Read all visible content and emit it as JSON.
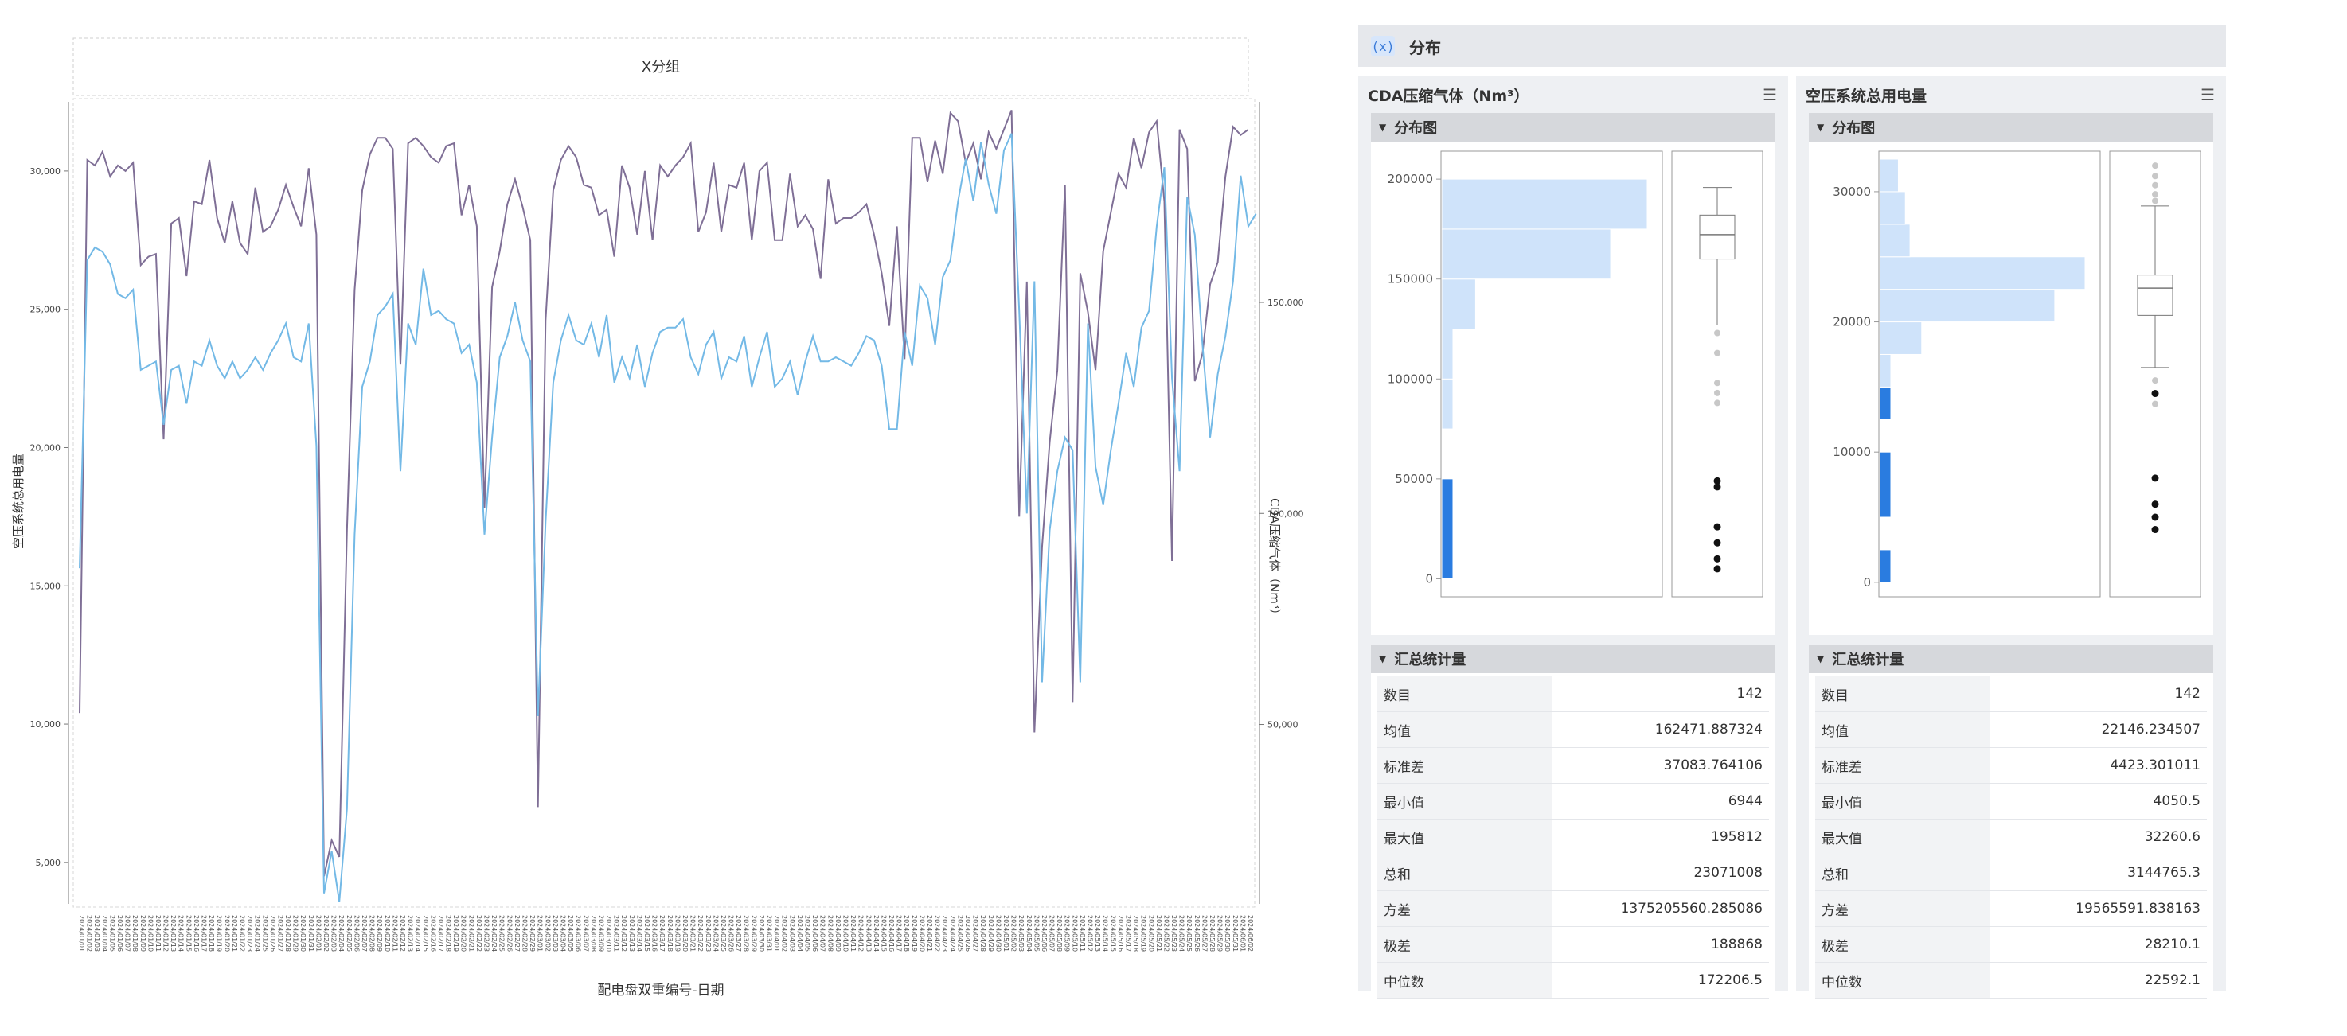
{
  "chart_data": [
    {
      "type": "line",
      "title": "X分组",
      "xlabel": "配电盘双重编号-日期",
      "ylabel": "空压系统总用电量",
      "y2label": "CDA压缩气体（Nm³）",
      "ylim": [
        3500,
        32500
      ],
      "y2lim": [
        7500,
        197500
      ],
      "yticks": [
        "5,000",
        "10,000",
        "15,000",
        "20,000",
        "25,000",
        "30,000"
      ],
      "y2ticks": [
        "50,000",
        "100,000",
        "150,000"
      ],
      "x_tick_label_format": "2024/MM/DD",
      "x_tick_labels_note": "142 rotated date labels, 2024/01/01 - 2024/05/30",
      "series": [
        {
          "axis": "left",
          "color": "#7f6f96",
          "values": [
            10400,
            30400,
            30200,
            30700,
            29800,
            30200,
            30000,
            30300,
            26600,
            26900,
            27000,
            20300,
            28100,
            28300,
            26200,
            28900,
            28800,
            30400,
            28300,
            27400,
            28900,
            27400,
            27000,
            29400,
            27800,
            28000,
            28600,
            29500,
            28700,
            28000,
            30100,
            27700,
            4500,
            5800,
            5200,
            17000,
            25700,
            29300,
            30600,
            31200,
            31200,
            30800,
            23000,
            31000,
            31200,
            30900,
            30500,
            30300,
            30900,
            31000,
            28400,
            29500,
            28000,
            17800,
            25800,
            27100,
            28800,
            29700,
            28700,
            27500,
            7000,
            24600,
            29300,
            30400,
            30900,
            30500,
            29500,
            29400,
            28400,
            28600,
            26900,
            30200,
            29400,
            27700,
            30000,
            27500,
            30200,
            29800,
            30200,
            30500,
            31000,
            27800,
            28500,
            30300,
            27800,
            29500,
            29400,
            30300,
            27500,
            30000,
            30300,
            27500,
            27500,
            29900,
            28000,
            28400,
            27900,
            26100,
            29700,
            28100,
            28300,
            28300,
            28500,
            28800,
            27700,
            26300,
            24400,
            28000,
            23200,
            31200,
            31200,
            29600,
            31100,
            29900,
            32100,
            31800,
            30300,
            31000,
            29700,
            31400,
            30800,
            31500,
            32200,
            17500,
            26000,
            9700,
            16400,
            20200,
            22800,
            29500,
            10800,
            26300,
            24900,
            22800,
            27100,
            28500,
            29900,
            29400,
            31200,
            30100,
            31400,
            31800,
            28900,
            15900,
            31500,
            30800,
            22400,
            23400,
            25900,
            26700,
            29800,
            31600,
            31300,
            31500
          ]
        },
        {
          "axis": "right",
          "color": "#73b9e6",
          "values": [
            87000,
            160000,
            163000,
            162000,
            159000,
            152000,
            151000,
            153000,
            134000,
            135000,
            136000,
            121000,
            134000,
            135000,
            126000,
            136000,
            135000,
            141000,
            135000,
            132000,
            136000,
            132000,
            134000,
            137000,
            134000,
            138000,
            141000,
            145000,
            137000,
            136000,
            145000,
            116000,
            10000,
            20000,
            8000,
            30000,
            95000,
            130000,
            136000,
            147000,
            149000,
            152000,
            110000,
            145000,
            140000,
            158000,
            147000,
            148000,
            146000,
            145000,
            138000,
            140000,
            131000,
            95000,
            118000,
            137000,
            142000,
            150000,
            141000,
            136000,
            52000,
            98000,
            131000,
            141000,
            147000,
            141000,
            140000,
            145000,
            137000,
            147000,
            131000,
            137000,
            132000,
            140000,
            130000,
            138000,
            143000,
            144000,
            144000,
            146000,
            137000,
            133000,
            140000,
            143000,
            132000,
            137000,
            136000,
            142000,
            130000,
            137000,
            143000,
            130000,
            132000,
            136000,
            128000,
            136000,
            142000,
            136000,
            136000,
            137000,
            136000,
            135000,
            138000,
            142000,
            141000,
            135000,
            120000,
            120000,
            143000,
            135000,
            154000,
            151000,
            140000,
            156000,
            160000,
            174000,
            184000,
            174000,
            188000,
            178000,
            171000,
            186000,
            190000,
            148000,
            100000,
            155000,
            60000,
            96000,
            110000,
            118000,
            115000,
            60000,
            145000,
            111000,
            102000,
            115000,
            126000,
            138000,
            130000,
            144000,
            148000,
            168000,
            182000,
            132000,
            110000,
            175000,
            166000,
            140000,
            118000,
            133000,
            142000,
            155000,
            180000,
            168000,
            171000
          ]
        }
      ]
    },
    {
      "type": "bar",
      "title": "CDA压缩气体（Nm³）",
      "section": "分布图",
      "orientation": "horizontal-histogram",
      "yticks": [
        0,
        50000,
        100000,
        150000,
        200000
      ],
      "ylim": [
        -5000,
        210000
      ],
      "bins": [
        {
          "from": 0,
          "to": 50000,
          "count": 7,
          "highlight": true
        },
        {
          "from": 75000,
          "to": 100000,
          "count": 2
        },
        {
          "from": 100000,
          "to": 125000,
          "count": 2
        },
        {
          "from": 125000,
          "to": 150000,
          "count": 12
        },
        {
          "from": 150000,
          "to": 175000,
          "count": 60
        },
        {
          "from": 175000,
          "to": 200000,
          "count": 73
        }
      ],
      "box": {
        "min": 127000,
        "q1": 160000,
        "median": 172206.5,
        "q3": 182000,
        "max": 195812
      },
      "outliers_gray": [
        123000,
        113000,
        98000,
        93000,
        88000,
        48000
      ],
      "outliers_black": [
        49000,
        46000,
        26000,
        18000,
        10000,
        5000
      ]
    },
    {
      "type": "bar",
      "title": "空压系统总用电量",
      "section": "分布图",
      "orientation": "horizontal-histogram",
      "yticks": [
        0,
        10000,
        20000,
        30000
      ],
      "ylim": [
        -500,
        32500
      ],
      "bins": [
        {
          "from": 0,
          "to": 2500,
          "count": 1,
          "highlight": true
        },
        {
          "from": 5000,
          "to": 10000,
          "count": 5,
          "highlight": true
        },
        {
          "from": 12500,
          "to": 15000,
          "count": 1,
          "highlight": true
        },
        {
          "from": 15000,
          "to": 17500,
          "count": 4
        },
        {
          "from": 17500,
          "to": 20000,
          "count": 18
        },
        {
          "from": 20000,
          "to": 22500,
          "count": 75
        },
        {
          "from": 22500,
          "to": 25000,
          "count": 88
        },
        {
          "from": 25000,
          "to": 27500,
          "count": 13
        },
        {
          "from": 27500,
          "to": 30000,
          "count": 11
        },
        {
          "from": 30000,
          "to": 32500,
          "count": 8
        }
      ],
      "box": {
        "min": 16500,
        "q1": 20500,
        "median": 22592.1,
        "q3": 23600,
        "max": 28900
      },
      "outliers_gray": [
        32000,
        31200,
        30500,
        29800,
        29300,
        15500,
        13700
      ],
      "outliers_black": [
        14500,
        8000,
        6000,
        5000,
        4050.5
      ]
    }
  ],
  "header": {
    "icon": "(x)",
    "title": "分布"
  },
  "cards": [
    {
      "title": "CDA压缩气体（Nm³）",
      "plot_section": "分布图",
      "stats_section": "汇总统计量",
      "stats": [
        {
          "k": "数目",
          "v": "142"
        },
        {
          "k": "均值",
          "v": "162471.887324"
        },
        {
          "k": "标准差",
          "v": "37083.764106"
        },
        {
          "k": "最小值",
          "v": "6944"
        },
        {
          "k": "最大值",
          "v": "195812"
        },
        {
          "k": "总和",
          "v": "23071008"
        },
        {
          "k": "方差",
          "v": "1375205560.285086"
        },
        {
          "k": "极差",
          "v": "188868"
        },
        {
          "k": "中位数",
          "v": "172206.5"
        }
      ]
    },
    {
      "title": "空压系统总用电量",
      "plot_section": "分布图",
      "stats_section": "汇总统计量",
      "stats": [
        {
          "k": "数目",
          "v": "142"
        },
        {
          "k": "均值",
          "v": "22146.234507"
        },
        {
          "k": "标准差",
          "v": "4423.301011"
        },
        {
          "k": "最小值",
          "v": "4050.5"
        },
        {
          "k": "最大值",
          "v": "32260.6"
        },
        {
          "k": "总和",
          "v": "3144765.3"
        },
        {
          "k": "方差",
          "v": "19565591.838163"
        },
        {
          "k": "极差",
          "v": "28210.1"
        },
        {
          "k": "中位数",
          "v": "22592.1"
        }
      ]
    }
  ]
}
